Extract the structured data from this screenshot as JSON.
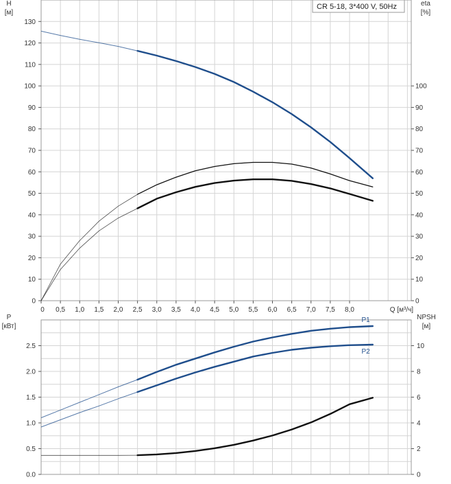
{
  "legend_box": {
    "text": "CR 5-18, 3*400 V, 50Hz"
  },
  "chart_data": [
    {
      "type": "line",
      "panel": "head-efficiency",
      "y_left": {
        "label_line1": "H",
        "label_line2": "[м]",
        "range": [
          0,
          140
        ],
        "ticks": [
          "0",
          "10",
          "20",
          "30",
          "40",
          "50",
          "60",
          "70",
          "80",
          "90",
          "100",
          "110",
          "120",
          "130"
        ]
      },
      "y_right": {
        "label_line1": "eta",
        "label_line2": "[%]",
        "range": [
          0,
          140
        ],
        "ticks": [
          "0",
          "10",
          "20",
          "30",
          "40",
          "50",
          "60",
          "70",
          "80",
          "90",
          "100"
        ]
      },
      "x_axis": {
        "label": "Q [м³/ч]",
        "range": [
          0,
          9.6
        ],
        "ticks": [
          {
            "v": 0,
            "t": "0"
          },
          {
            "v": 0.5,
            "t": "0,5"
          },
          {
            "v": 1,
            "t": "1,0"
          },
          {
            "v": 1.5,
            "t": "1,5"
          },
          {
            "v": 2,
            "t": "2,0"
          },
          {
            "v": 2.5,
            "t": "2,5"
          },
          {
            "v": 3,
            "t": "3,0"
          },
          {
            "v": 3.5,
            "t": "3,5"
          },
          {
            "v": 4,
            "t": "4,0"
          },
          {
            "v": 4.5,
            "t": "4,5"
          },
          {
            "v": 5,
            "t": "5,0"
          },
          {
            "v": 5.5,
            "t": "5,5"
          },
          {
            "v": 6,
            "t": "6,0"
          },
          {
            "v": 6.5,
            "t": "6,5"
          },
          {
            "v": 7,
            "t": "7,0"
          },
          {
            "v": 7.5,
            "t": "7,5"
          },
          {
            "v": 8,
            "t": "8,0"
          }
        ]
      },
      "grid": true,
      "series": [
        {
          "id": "head",
          "color": "#1f4e8c",
          "bold_from": 2.5,
          "x": [
            0,
            0.5,
            1,
            1.5,
            2,
            2.5,
            3,
            3.5,
            4,
            4.5,
            5,
            5.5,
            6,
            6.5,
            7,
            7.5,
            8,
            8.6
          ],
          "y": [
            125.5,
            123.5,
            121.7,
            120.1,
            118.4,
            116.3,
            114.1,
            111.6,
            108.8,
            105.6,
            101.8,
            97.3,
            92.4,
            86.9,
            80.7,
            73.9,
            66.4,
            57.0
          ]
        },
        {
          "id": "eta-pump",
          "color": "#111111",
          "bold_from": 2.5,
          "x": [
            0,
            0.5,
            1,
            1.5,
            2,
            2.5,
            3,
            3.5,
            4,
            4.5,
            5,
            5.5,
            6,
            6.5,
            7,
            7.5,
            8,
            8.6
          ],
          "y": [
            0,
            17,
            28,
            37,
            44,
            49.5,
            54,
            57.5,
            60.5,
            62.5,
            63.8,
            64.4,
            64.4,
            63.6,
            61.8,
            59.0,
            55.9,
            53.0
          ]
        },
        {
          "id": "eta-total",
          "color": "#111111",
          "bold_from": 2.5,
          "emphasis": true,
          "x": [
            0,
            0.5,
            1,
            1.5,
            2,
            2.5,
            3,
            3.5,
            4,
            4.5,
            5,
            5.5,
            6,
            6.5,
            7,
            7.5,
            8,
            8.6
          ],
          "y": [
            0,
            14.5,
            24.5,
            32.5,
            38.5,
            43.0,
            47.5,
            50.5,
            53.0,
            54.8,
            55.9,
            56.5,
            56.5,
            55.8,
            54.3,
            52.3,
            49.7,
            46.5
          ]
        }
      ]
    },
    {
      "type": "line",
      "panel": "power-npsh",
      "y_left": {
        "label_line1": "P",
        "label_line2": "[кВт]",
        "range": [
          0,
          3
        ],
        "ticks": [
          {
            "v": 0,
            "t": "0.0"
          },
          {
            "v": 0.5,
            "t": "0.5"
          },
          {
            "v": 1,
            "t": "1.0"
          },
          {
            "v": 1.5,
            "t": "1.5"
          },
          {
            "v": 2,
            "t": "2.0"
          },
          {
            "v": 2.5,
            "t": "2.5"
          }
        ]
      },
      "y_right": {
        "label_line1": "NPSH",
        "label_line2": "[м]",
        "range": [
          0,
          12
        ],
        "ticks": [
          {
            "v": 0,
            "t": "0"
          },
          {
            "v": 2,
            "t": "2"
          },
          {
            "v": 4,
            "t": "4"
          },
          {
            "v": 6,
            "t": "6"
          },
          {
            "v": 8,
            "t": "8"
          },
          {
            "v": 10,
            "t": "10"
          }
        ]
      },
      "x_range": [
        0,
        9.6
      ],
      "grid": true,
      "series": [
        {
          "id": "p1",
          "name": "P1",
          "color": "#1f4e8c",
          "bold_from": 2.5,
          "axis": "left",
          "x": [
            0,
            0.5,
            1,
            1.5,
            2,
            2.5,
            3,
            3.5,
            4,
            4.5,
            5,
            5.5,
            6,
            6.5,
            7,
            7.5,
            8,
            8.6
          ],
          "y": [
            1.1,
            1.25,
            1.4,
            1.55,
            1.7,
            1.84,
            1.99,
            2.13,
            2.25,
            2.37,
            2.48,
            2.58,
            2.66,
            2.73,
            2.79,
            2.83,
            2.86,
            2.88
          ]
        },
        {
          "id": "p2",
          "name": "P2",
          "color": "#1f4e8c",
          "bold_from": 2.5,
          "axis": "left",
          "x": [
            0,
            0.5,
            1,
            1.5,
            2,
            2.5,
            3,
            3.5,
            4,
            4.5,
            5,
            5.5,
            6,
            6.5,
            7,
            7.5,
            8,
            8.6
          ],
          "y": [
            0.92,
            1.06,
            1.2,
            1.33,
            1.47,
            1.6,
            1.73,
            1.86,
            1.98,
            2.09,
            2.19,
            2.29,
            2.36,
            2.42,
            2.46,
            2.49,
            2.51,
            2.52
          ]
        },
        {
          "id": "npsh",
          "color": "#111111",
          "bold_from": 2.5,
          "emphasis": true,
          "axis": "right",
          "x": [
            0,
            0.5,
            1,
            1.5,
            2,
            2.5,
            3,
            3.5,
            4,
            4.5,
            5,
            5.5,
            6,
            6.5,
            7,
            7.5,
            8,
            8.6
          ],
          "y": [
            1.48,
            1.48,
            1.48,
            1.48,
            1.48,
            1.49,
            1.55,
            1.66,
            1.82,
            2.03,
            2.3,
            2.63,
            3.02,
            3.49,
            4.04,
            4.7,
            5.45,
            5.95
          ]
        }
      ]
    }
  ]
}
